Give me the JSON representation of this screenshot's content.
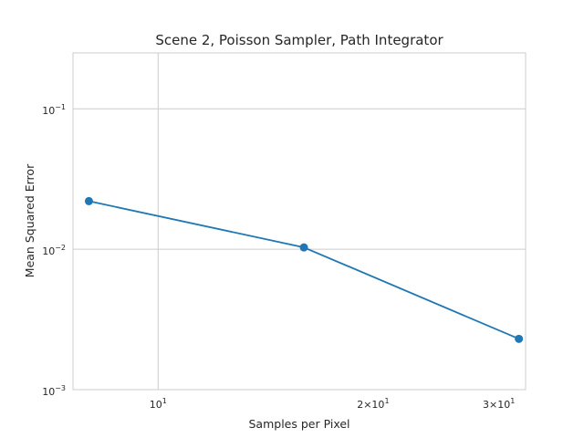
{
  "chart_data": {
    "type": "line",
    "title": "Scene 2, Poisson Sampler, Path Integrator",
    "xlabel": "Samples per Pixel",
    "ylabel": "Mean Squared Error",
    "x_scale": "log",
    "y_scale": "log",
    "xlim": [
      7.6,
      32.7
    ],
    "ylim": [
      0.001,
      0.25
    ],
    "grid": true,
    "x_ticks": [
      {
        "value": 10,
        "base": "10",
        "exp": "1"
      },
      {
        "value": 20,
        "base": "2×10",
        "exp": "1"
      },
      {
        "value": 30,
        "base": "3×10",
        "exp": "1"
      }
    ],
    "y_ticks": [
      {
        "value": 0.001,
        "base": "10",
        "exp": "−3"
      },
      {
        "value": 0.01,
        "base": "10",
        "exp": "−2"
      },
      {
        "value": 0.1,
        "base": "10",
        "exp": "−1"
      }
    ],
    "series": [
      {
        "color": "#1f77b4",
        "x": [
          8,
          16,
          32
        ],
        "y": [
          0.022,
          0.0103,
          0.0023
        ]
      }
    ]
  }
}
